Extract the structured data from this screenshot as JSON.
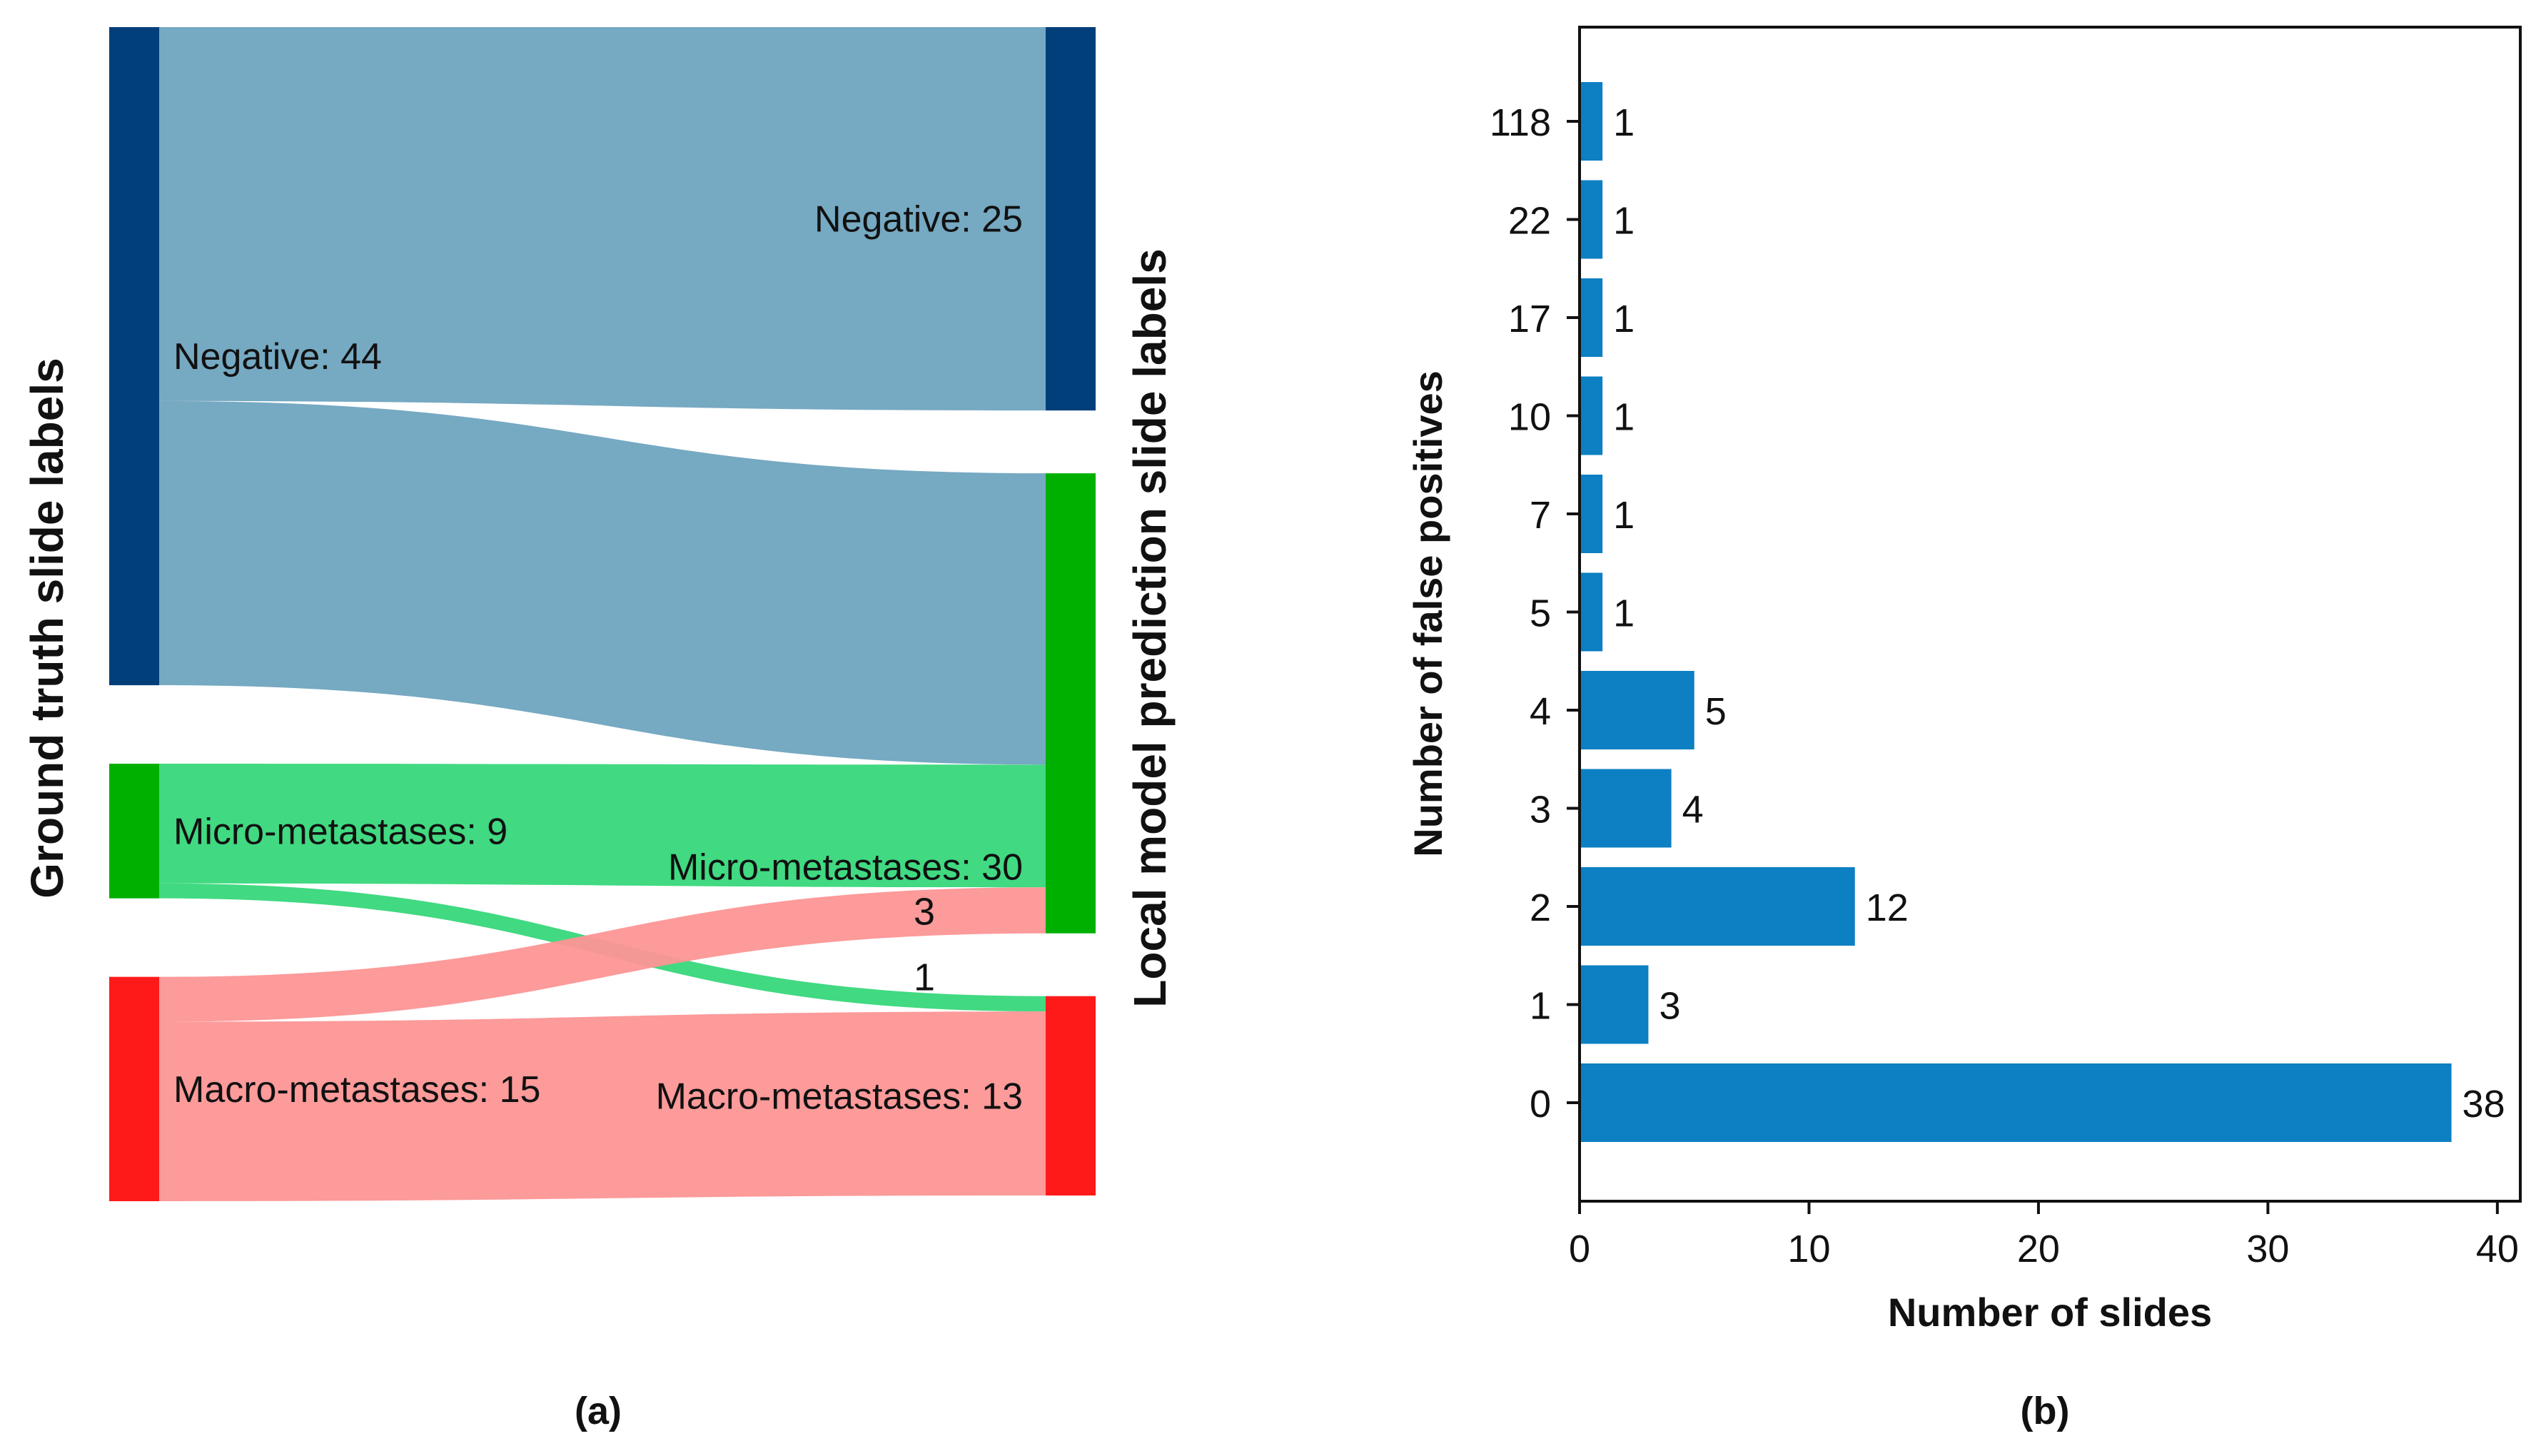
{
  "chart_data": [
    {
      "type": "sankey",
      "panel_label": "(a)",
      "left_axis_title": "Ground truth slide labels",
      "right_axis_title": "Local model prediction slide labels",
      "source_nodes": [
        {
          "label": "Negative: 44",
          "name": "Negative",
          "value": 44,
          "color": "#003f7a"
        },
        {
          "label": "Micro-metastases: 9",
          "name": "Micro-metastases",
          "value": 9,
          "color": "#00b000"
        },
        {
          "label": "Macro-metastases: 15",
          "name": "Macro-metastases",
          "value": 15,
          "color": "#ff1a1a"
        }
      ],
      "target_nodes": [
        {
          "label": "Negative: 25",
          "name": "Negative",
          "value": 25,
          "color": "#003f7a"
        },
        {
          "label": "Micro-metastases: 30",
          "name": "Micro-metastases",
          "value": 30,
          "color": "#00b000"
        },
        {
          "label": "Macro-metastases: 13",
          "name": "Macro-metastases",
          "value": 13,
          "color": "#ff1a1a"
        }
      ],
      "links": [
        {
          "source": 0,
          "target": 0,
          "value": 25,
          "color": "#6fa4bf"
        },
        {
          "source": 0,
          "target": 1,
          "value": 19,
          "color": "#6fa4bf"
        },
        {
          "source": 1,
          "target": 1,
          "value": 8,
          "color": "#37d77a"
        },
        {
          "source": 1,
          "target": 2,
          "value": 1,
          "color": "#37d77a",
          "label": "1"
        },
        {
          "source": 2,
          "target": 1,
          "value": 3,
          "color": "#fd9595",
          "label": "3"
        },
        {
          "source": 2,
          "target": 2,
          "value": 12,
          "color": "#fd9595"
        }
      ]
    },
    {
      "type": "bar",
      "orientation": "horizontal",
      "panel_label": "(b)",
      "xlabel": "Number of slides",
      "ylabel": "Number of false positives",
      "categories": [
        "0",
        "1",
        "2",
        "3",
        "4",
        "5",
        "7",
        "10",
        "17",
        "22",
        "118"
      ],
      "values": [
        38,
        3,
        12,
        4,
        5,
        1,
        1,
        1,
        1,
        1,
        1
      ],
      "xlim": [
        0,
        41
      ],
      "xticks": [
        0,
        10,
        20,
        30,
        40
      ],
      "bar_color": "#0d7fc3"
    }
  ]
}
